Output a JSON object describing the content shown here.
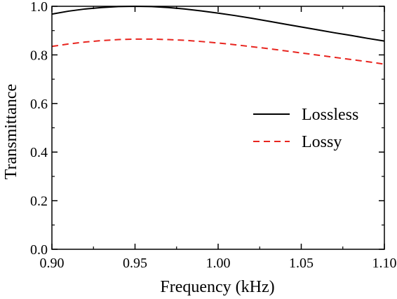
{
  "chart_data": {
    "type": "line",
    "xlabel": "Frequency (kHz)",
    "ylabel": "Transmittance",
    "xlim": [
      0.9,
      1.1
    ],
    "ylim": [
      0.0,
      1.0
    ],
    "xticks": [
      "0.90",
      "0.95",
      "1.00",
      "1.05",
      "1.10"
    ],
    "yticks": [
      "0.0",
      "0.2",
      "0.4",
      "0.6",
      "0.8",
      "1.0"
    ],
    "grid": false,
    "legend_position": "center-right",
    "series": [
      {
        "name": "Lossless",
        "color": "#000000",
        "style": "solid",
        "x": [
          0.9,
          0.91,
          0.92,
          0.93,
          0.94,
          0.95,
          0.96,
          0.97,
          0.98,
          0.99,
          1.0,
          1.01,
          1.02,
          1.03,
          1.04,
          1.05,
          1.06,
          1.07,
          1.08,
          1.09,
          1.1
        ],
        "y": [
          0.968,
          0.98,
          0.989,
          0.995,
          0.999,
          1.0,
          0.999,
          0.995,
          0.989,
          0.981,
          0.972,
          0.962,
          0.951,
          0.939,
          0.927,
          0.915,
          0.903,
          0.891,
          0.88,
          0.868,
          0.857
        ]
      },
      {
        "name": "Lossy",
        "color": "#e8251f",
        "style": "dashed",
        "x": [
          0.9,
          0.91,
          0.92,
          0.93,
          0.94,
          0.95,
          0.96,
          0.97,
          0.98,
          0.99,
          1.0,
          1.01,
          1.02,
          1.03,
          1.04,
          1.05,
          1.06,
          1.07,
          1.08,
          1.09,
          1.1
        ],
        "y": [
          0.835,
          0.845,
          0.853,
          0.859,
          0.863,
          0.865,
          0.865,
          0.863,
          0.86,
          0.855,
          0.849,
          0.842,
          0.834,
          0.826,
          0.817,
          0.808,
          0.799,
          0.79,
          0.781,
          0.772,
          0.762
        ]
      }
    ]
  }
}
